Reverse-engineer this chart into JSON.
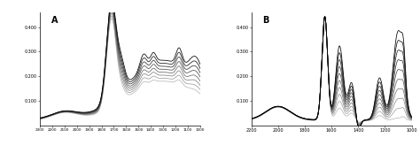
{
  "panel_A": {
    "label": "A",
    "xmin": 2300,
    "xmax": 1000,
    "ymin": 0.0,
    "ymax": 0.46,
    "yticks": [
      0.1,
      0.2,
      0.3,
      0.4
    ],
    "xticks": [
      2300,
      2200,
      2100,
      2000,
      1900,
      1800,
      1700,
      1600,
      1500,
      1400,
      1300,
      1200,
      1100,
      1000
    ],
    "n_curves": 8
  },
  "panel_B": {
    "label": "B",
    "xmin": 2200,
    "xmax": 1000,
    "ymin": 0.0,
    "ymax": 0.46,
    "yticks": [
      0.1,
      0.2,
      0.3,
      0.4
    ],
    "xticks": [
      2200,
      2000,
      1800,
      1600,
      1400,
      1200,
      1000
    ],
    "n_curves": 10
  }
}
